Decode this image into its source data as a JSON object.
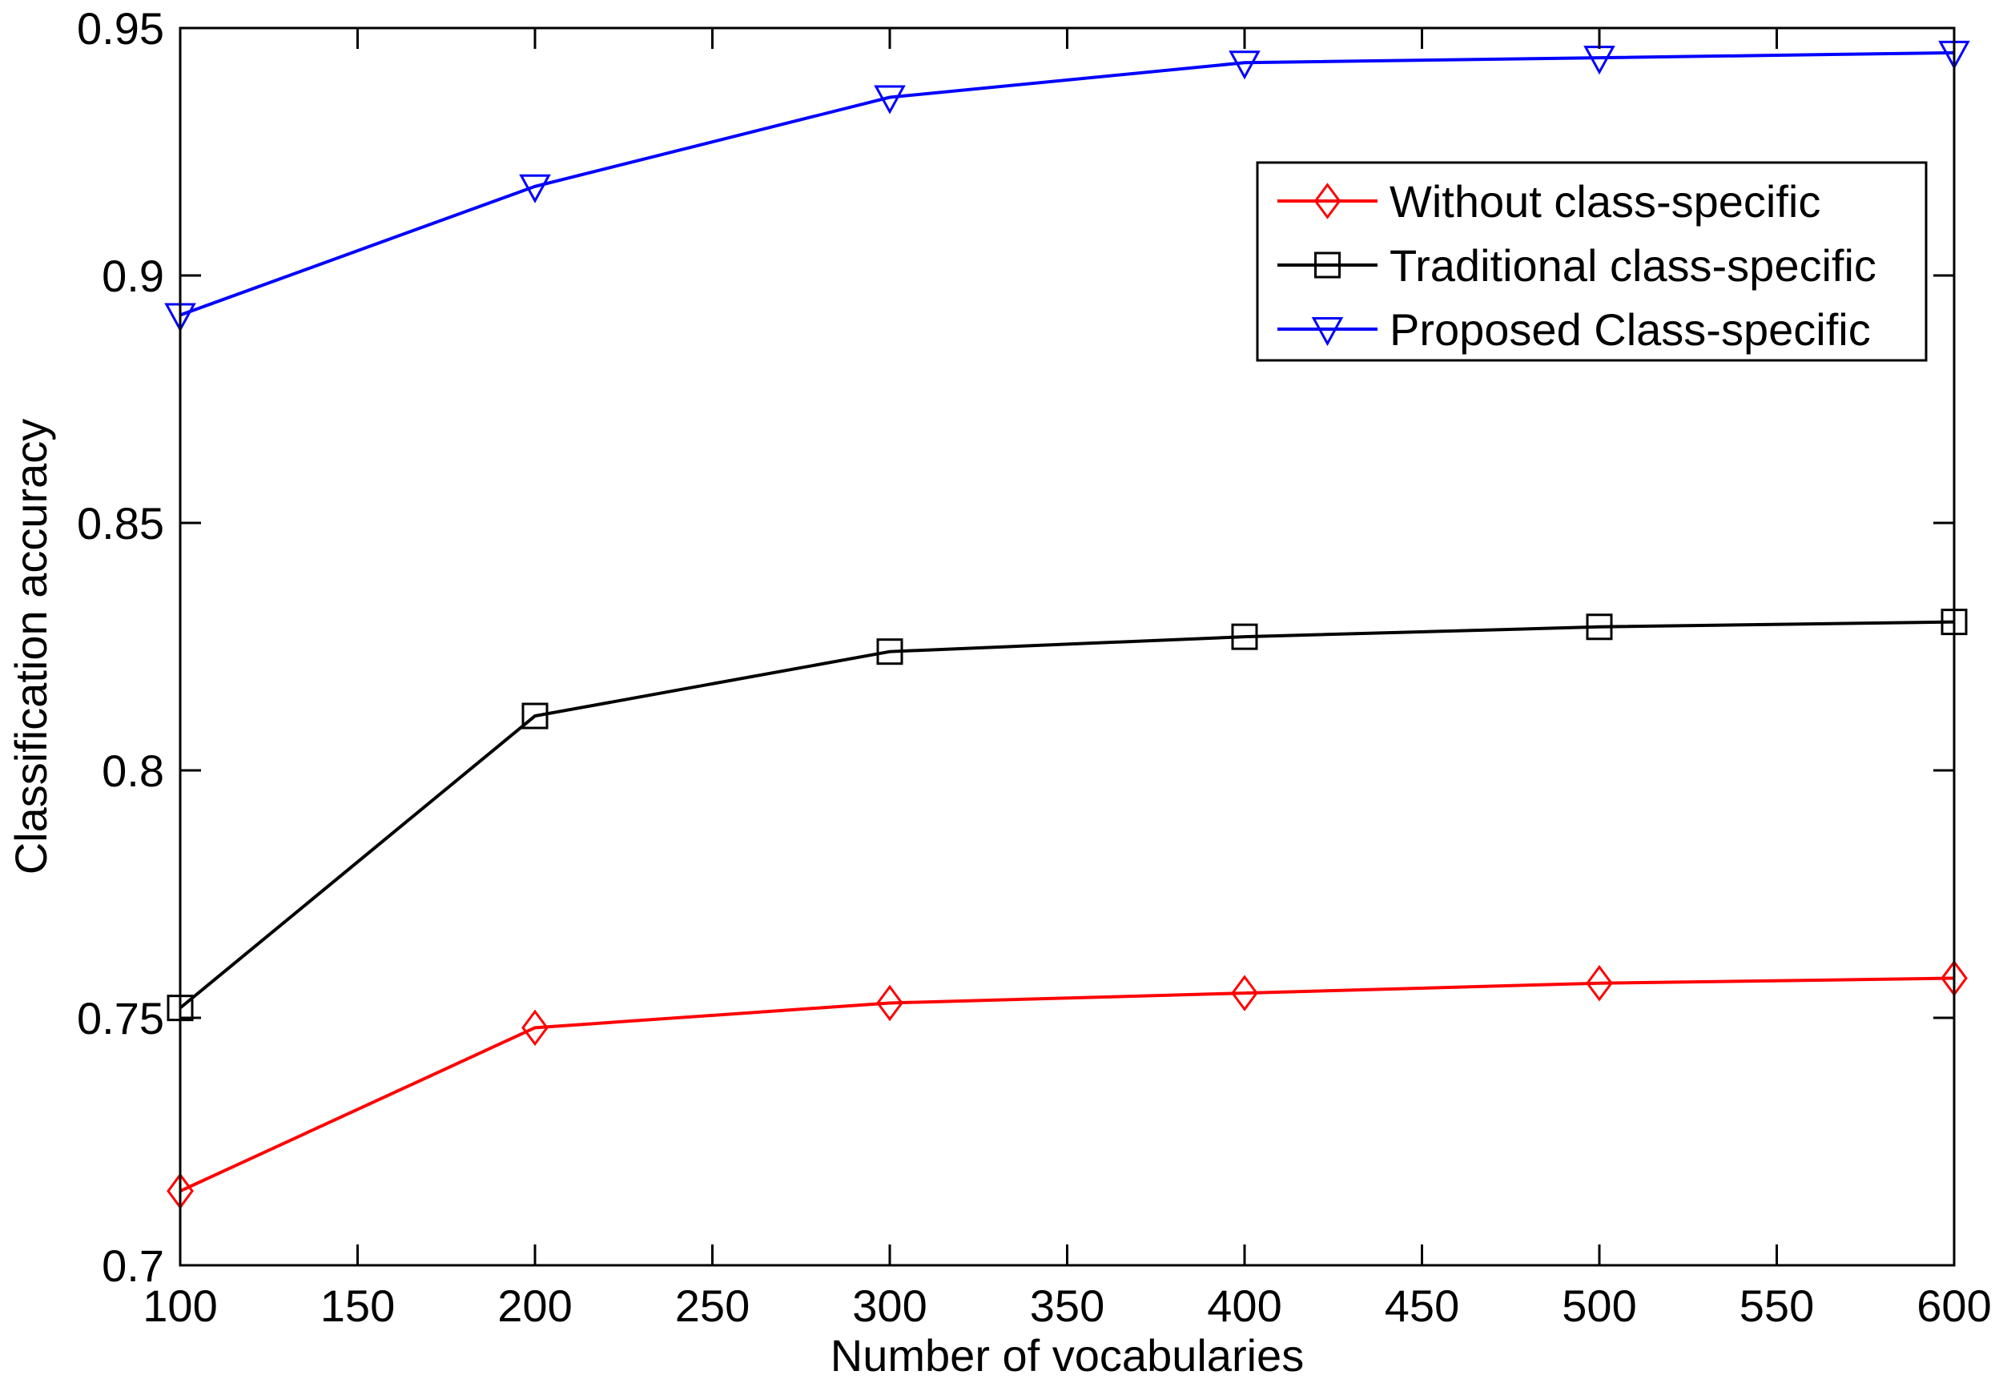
{
  "chart_data": {
    "type": "line",
    "title": "",
    "xlabel": "Number of vocabularies",
    "ylabel": "Classification accuracy",
    "x": [
      100,
      200,
      300,
      400,
      500,
      600
    ],
    "xlim": [
      100,
      600
    ],
    "ylim": [
      0.7,
      0.95
    ],
    "xticks": [
      100,
      150,
      200,
      250,
      300,
      350,
      400,
      450,
      500,
      550,
      600
    ],
    "xtick_labels": [
      "100",
      "150",
      "200",
      "250",
      "300",
      "350",
      "400",
      "450",
      "500",
      "550",
      "600"
    ],
    "yticks": [
      0.7,
      0.75,
      0.8,
      0.85,
      0.9,
      0.95
    ],
    "ytick_labels": [
      "0.7",
      "0.75",
      "0.8",
      "0.85",
      "0.9",
      "0.95"
    ],
    "grid": false,
    "legend_position": "top-right",
    "series": [
      {
        "name": "Without class-specific",
        "color": "#ff0000",
        "marker": "diamond",
        "values": [
          0.715,
          0.748,
          0.753,
          0.755,
          0.757,
          0.758
        ]
      },
      {
        "name": "Traditional class-specific",
        "color": "#000000",
        "marker": "square",
        "values": [
          0.752,
          0.811,
          0.824,
          0.827,
          0.829,
          0.83
        ]
      },
      {
        "name": "Proposed Class-specific",
        "color": "#0000ff",
        "marker": "triangle-down",
        "values": [
          0.892,
          0.918,
          0.936,
          0.943,
          0.944,
          0.945
        ]
      }
    ]
  }
}
